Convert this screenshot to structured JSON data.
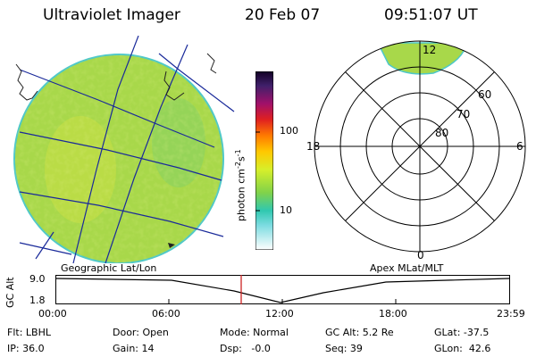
{
  "header": {
    "title": "Ultraviolet Imager",
    "date": "20 Feb 07",
    "time": "09:51:07 UT"
  },
  "colorbar": {
    "unit_html": "photon cm",
    "exp1": "-2",
    "s": "s",
    "exp2": "-1",
    "tick_100": "100",
    "tick_10": "10"
  },
  "polar": {
    "label_12": "12",
    "label_18": "18",
    "label_6": "6",
    "label_0": "0",
    "lat_60": "60",
    "lat_70": "70",
    "lat_80": "80"
  },
  "labels": {
    "geo": "Geographic Lat/Lon",
    "apex": "Apex MLat/MLT"
  },
  "altitude_plot": {
    "ylabel": "GC Alt",
    "ytick_top": "9.0",
    "ytick_bottom": "1.8",
    "xticks": [
      "00:00",
      "06:00",
      "12:00",
      "18:00",
      "23:59"
    ]
  },
  "status": {
    "flt": "Flt: LBHL",
    "ip": "IP: 36.0",
    "door": "Door: Open",
    "gain": "Gain: 14",
    "mode": "Mode: Normal",
    "dsp": "Dsp:   -0.0",
    "gcalt": "GC Alt: 5.2 Re",
    "seq": "Seq: 39",
    "glat": "GLat: -37.5",
    "glon": "GLon:  42.6"
  },
  "colors": {
    "disk_fill": "#a8d84a",
    "disk_edge": "#4ec8c8",
    "marker": "#cc2222"
  }
}
